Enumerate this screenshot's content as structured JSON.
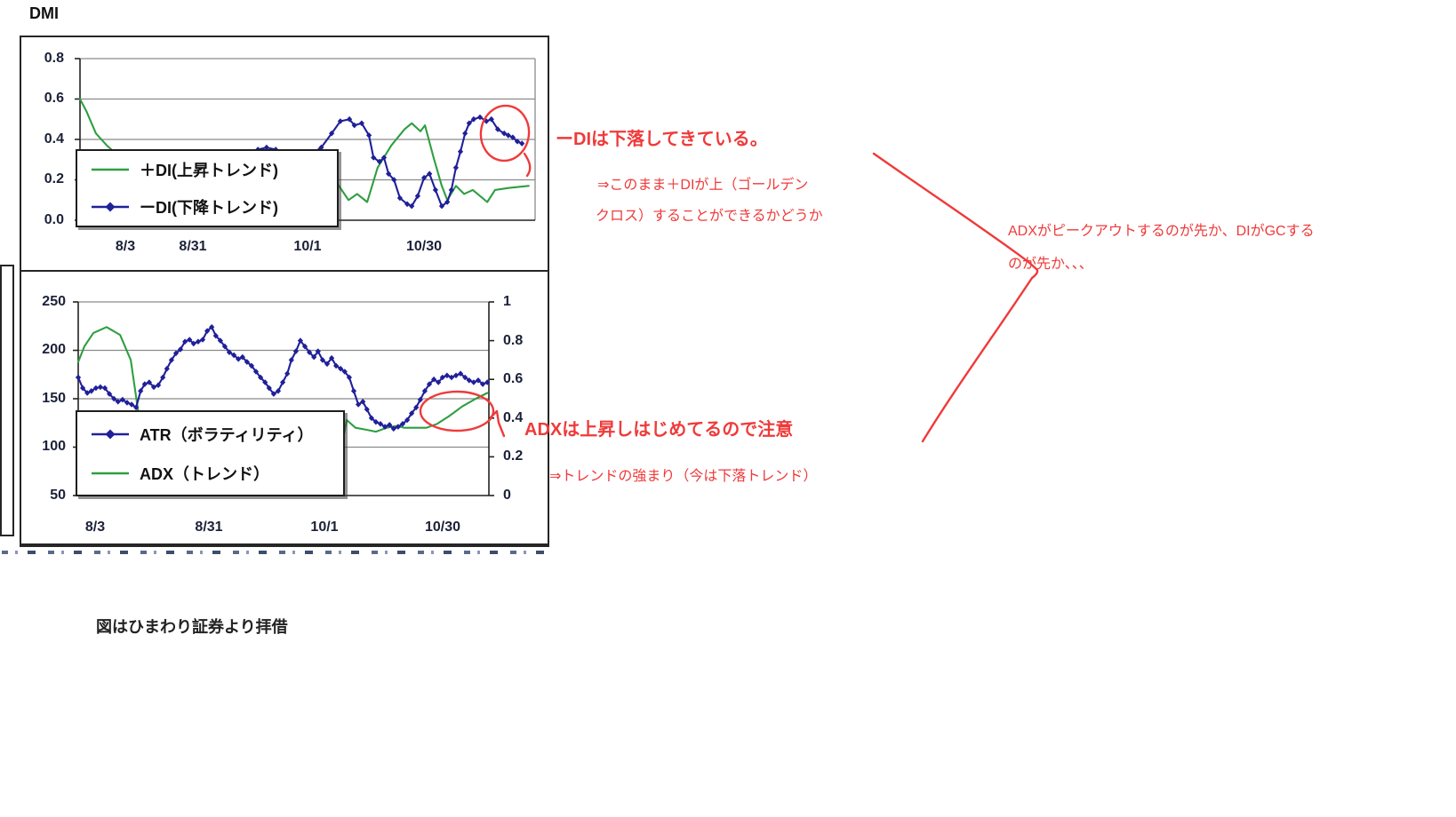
{
  "page": {
    "title": "DMI",
    "caption": "図はひまわり証券より拝借"
  },
  "annotations": {
    "di_main": "ーDIは下落してきている。",
    "di_sub1": "⇒このまま＋DIが上（ゴールデン",
    "di_sub2": "クロス）することができるかどうか",
    "race_line1": "ADXがピークアウトするのが先か、DIがGCする",
    "race_line2": "のが先か、、、",
    "adx_main": "ADXは上昇しはじめてるので注意",
    "adx_sub": "⇒トレンドの強まり（今は下落トレンド）"
  },
  "colors": {
    "di_plus_green": "#2f9e41",
    "di_minus_navy": "#20209a",
    "annotation_red": "#ef3a3a",
    "grid_gray": "#8a8a8a",
    "axis_label_ink": "#1b2138",
    "legend_ink": "#111111"
  },
  "chart_data": [
    {
      "type": "line",
      "title": "DMI",
      "x_ticks": [
        "8/3",
        "8/31",
        "10/1",
        "10/30"
      ],
      "ylim": [
        0,
        0.8
      ],
      "y_ticks": [
        "0.8",
        "0.6",
        "0.4",
        "0.2",
        "0.0"
      ],
      "grid": true,
      "legend_position": "inside-lower-left",
      "legend": [
        {
          "label": "＋DI(上昇トレンド)",
          "color": "green",
          "marker": false
        },
        {
          "label": "ーDI(下降トレンド)",
          "color": "navy",
          "marker": "diamond"
        }
      ],
      "series": [
        {
          "name": "＋DI(上昇トレンド)",
          "points": [
            [
              0,
              0.6
            ],
            [
              1.4,
              0.54
            ],
            [
              3.5,
              0.43
            ],
            [
              5.9,
              0.37
            ],
            [
              8.4,
              0.32
            ],
            [
              11.7,
              0.27
            ],
            [
              15.6,
              0.22
            ],
            [
              19.5,
              0.18
            ],
            [
              23.4,
              0.15
            ],
            [
              27.3,
              0.17
            ],
            [
              31.3,
              0.13
            ],
            [
              35.2,
              0.16
            ],
            [
              39.1,
              0.12
            ],
            [
              43,
              0.15
            ],
            [
              46.9,
              0.18
            ],
            [
              50.8,
              0.16
            ],
            [
              54.7,
              0.17
            ],
            [
              56.6,
              0.18
            ],
            [
              59,
              0.1
            ],
            [
              60.9,
              0.13
            ],
            [
              63.1,
              0.09
            ],
            [
              65.4,
              0.26
            ],
            [
              68.4,
              0.37
            ],
            [
              71.3,
              0.45
            ],
            [
              72.9,
              0.48
            ],
            [
              74.8,
              0.44
            ],
            [
              75.8,
              0.47
            ],
            [
              77.7,
              0.31
            ],
            [
              79.5,
              0.17
            ],
            [
              80.7,
              0.1
            ],
            [
              82.6,
              0.17
            ],
            [
              84.4,
              0.13
            ],
            [
              86.3,
              0.15
            ],
            [
              89.5,
              0.09
            ],
            [
              91.2,
              0.15
            ],
            [
              94.3,
              0.16
            ],
            [
              98.6,
              0.17
            ]
          ]
        },
        {
          "name": "ーDI(下降トレンド)",
          "points": [
            [
              0,
              0.3
            ],
            [
              3,
              0.28
            ],
            [
              6,
              0.32
            ],
            [
              10,
              0.3
            ],
            [
              14,
              0.27
            ],
            [
              18,
              0.31
            ],
            [
              22,
              0.29
            ],
            [
              26,
              0.32
            ],
            [
              30,
              0.3
            ],
            [
              34,
              0.31
            ],
            [
              37,
              0.33
            ],
            [
              39.1,
              0.35
            ],
            [
              41,
              0.36
            ],
            [
              43,
              0.35
            ],
            [
              45,
              0.33
            ],
            [
              47,
              0.31
            ],
            [
              49,
              0.3
            ],
            [
              51,
              0.33
            ],
            [
              53,
              0.36
            ],
            [
              55.3,
              0.43
            ],
            [
              57.2,
              0.49
            ],
            [
              59.2,
              0.5
            ],
            [
              60.3,
              0.47
            ],
            [
              61.9,
              0.48
            ],
            [
              63.5,
              0.42
            ],
            [
              64.5,
              0.31
            ],
            [
              65.8,
              0.29
            ],
            [
              66.8,
              0.31
            ],
            [
              67.8,
              0.23
            ],
            [
              69,
              0.2
            ],
            [
              70.3,
              0.11
            ],
            [
              71.9,
              0.08
            ],
            [
              72.9,
              0.07
            ],
            [
              74.2,
              0.12
            ],
            [
              75.6,
              0.21
            ],
            [
              76.8,
              0.23
            ],
            [
              78.1,
              0.15
            ],
            [
              79.5,
              0.07
            ],
            [
              80.7,
              0.09
            ],
            [
              81.6,
              0.15
            ],
            [
              82.6,
              0.26
            ],
            [
              83.6,
              0.34
            ],
            [
              84.6,
              0.43
            ],
            [
              85.5,
              0.48
            ],
            [
              86.5,
              0.5
            ],
            [
              87.9,
              0.51
            ],
            [
              89.3,
              0.49
            ],
            [
              90.4,
              0.5
            ],
            [
              91.8,
              0.45
            ],
            [
              93.2,
              0.43
            ],
            [
              94.1,
              0.42
            ],
            [
              95.1,
              0.41
            ],
            [
              96.1,
              0.39
            ],
            [
              97.1,
              0.38
            ]
          ]
        }
      ]
    },
    {
      "type": "line",
      "x_ticks": [
        "8/3",
        "8/31",
        "10/1",
        "10/30"
      ],
      "ylim_left": [
        50,
        250
      ],
      "y_ticks_left": [
        "250",
        "200",
        "150",
        "100",
        "50"
      ],
      "ylim_right": [
        0,
        1
      ],
      "y_ticks_right": [
        "1",
        "0.8",
        "0.6",
        "0.4",
        "0.2",
        "0"
      ],
      "grid": true,
      "legend_position": "inside-lower-left",
      "legend": [
        {
          "label": "ATR（ボラティリティ）",
          "color": "navy",
          "marker": "diamond"
        },
        {
          "label": "ADX（トレンド）",
          "color": "green",
          "marker": false
        }
      ],
      "series": [
        {
          "name": "ATR（ボラティリティ）",
          "axis": "left",
          "points": [
            [
              0,
              172
            ],
            [
              1.1,
              161
            ],
            [
              2.2,
              156
            ],
            [
              3.2,
              158
            ],
            [
              4.3,
              161
            ],
            [
              5.4,
              162
            ],
            [
              6.5,
              161
            ],
            [
              7.6,
              155
            ],
            [
              8.7,
              150
            ],
            [
              9.7,
              147
            ],
            [
              10.8,
              149
            ],
            [
              11.9,
              146
            ],
            [
              13,
              144
            ],
            [
              14.1,
              141
            ],
            [
              15.2,
              158
            ],
            [
              16.2,
              165
            ],
            [
              17.3,
              167
            ],
            [
              18.4,
              162
            ],
            [
              19.5,
              164
            ],
            [
              20.6,
              172
            ],
            [
              21.6,
              181
            ],
            [
              22.7,
              190
            ],
            [
              23.8,
              197
            ],
            [
              24.9,
              201
            ],
            [
              26,
              209
            ],
            [
              27.1,
              211
            ],
            [
              28.1,
              207
            ],
            [
              29.2,
              209
            ],
            [
              30.3,
              211
            ],
            [
              31.4,
              220
            ],
            [
              32.5,
              224
            ],
            [
              33.5,
              215
            ],
            [
              34.6,
              210
            ],
            [
              35.7,
              204
            ],
            [
              36.8,
              198
            ],
            [
              37.9,
              195
            ],
            [
              39,
              191
            ],
            [
              40,
              193
            ],
            [
              41.1,
              188
            ],
            [
              42.2,
              184
            ],
            [
              43.3,
              178
            ],
            [
              44.4,
              172
            ],
            [
              45.5,
              167
            ],
            [
              46.5,
              161
            ],
            [
              47.6,
              155
            ],
            [
              48.7,
              158
            ],
            [
              49.8,
              167
            ],
            [
              50.9,
              176
            ],
            [
              51.9,
              190
            ],
            [
              53,
              199
            ],
            [
              54.1,
              210
            ],
            [
              55.2,
              204
            ],
            [
              56.3,
              198
            ],
            [
              57.4,
              193
            ],
            [
              58.4,
              199
            ],
            [
              59.5,
              190
            ],
            [
              60.6,
              186
            ],
            [
              61.7,
              192
            ],
            [
              62.8,
              184
            ],
            [
              63.9,
              181
            ],
            [
              64.9,
              178
            ],
            [
              66,
              172
            ],
            [
              67.1,
              158
            ],
            [
              68.2,
              144
            ],
            [
              69.3,
              147
            ],
            [
              70.3,
              139
            ],
            [
              71.4,
              130
            ],
            [
              72.5,
              126
            ],
            [
              73.6,
              124
            ],
            [
              74.7,
              121
            ],
            [
              75.8,
              123
            ],
            [
              76.8,
              119
            ],
            [
              77.9,
              121
            ],
            [
              79,
              124
            ],
            [
              80.1,
              128
            ],
            [
              81.2,
              135
            ],
            [
              82.3,
              141
            ],
            [
              83.3,
              149
            ],
            [
              84.4,
              158
            ],
            [
              85.5,
              165
            ],
            [
              86.6,
              170
            ],
            [
              87.7,
              167
            ],
            [
              88.7,
              172
            ],
            [
              89.8,
              174
            ],
            [
              90.9,
              172
            ],
            [
              92,
              174
            ],
            [
              93.1,
              176
            ],
            [
              94.2,
              172
            ],
            [
              95.2,
              169
            ],
            [
              96.3,
              167
            ],
            [
              97.4,
              169
            ],
            [
              98.5,
              165
            ],
            [
              99.6,
              167
            ]
          ]
        },
        {
          "name": "ADX（トレンド）",
          "axis": "right",
          "points": [
            [
              0,
              0.69
            ],
            [
              1.5,
              0.77
            ],
            [
              3.7,
              0.84
            ],
            [
              6.9,
              0.87
            ],
            [
              10.2,
              0.83
            ],
            [
              12.8,
              0.7
            ],
            [
              14.5,
              0.45
            ],
            [
              15.6,
              0.32
            ],
            [
              16.7,
              0.18
            ],
            [
              20,
              0.15
            ],
            [
              25,
              0.12
            ],
            [
              30,
              0.14
            ],
            [
              35,
              0.12
            ],
            [
              40,
              0.13
            ],
            [
              45,
              0.11
            ],
            [
              50,
              0.12
            ],
            [
              55,
              0.1
            ],
            [
              60,
              0.11
            ],
            [
              63,
              0.13
            ],
            [
              65.4,
              0.39
            ],
            [
              67.5,
              0.35
            ],
            [
              70.1,
              0.34
            ],
            [
              72.5,
              0.33
            ],
            [
              75.1,
              0.35
            ],
            [
              77.7,
              0.36
            ],
            [
              79.4,
              0.35
            ],
            [
              82,
              0.35
            ],
            [
              84.8,
              0.35
            ],
            [
              87.4,
              0.37
            ],
            [
              90.3,
              0.41
            ],
            [
              93.5,
              0.46
            ],
            [
              96.8,
              0.5
            ],
            [
              99.6,
              0.53
            ]
          ]
        }
      ]
    }
  ]
}
